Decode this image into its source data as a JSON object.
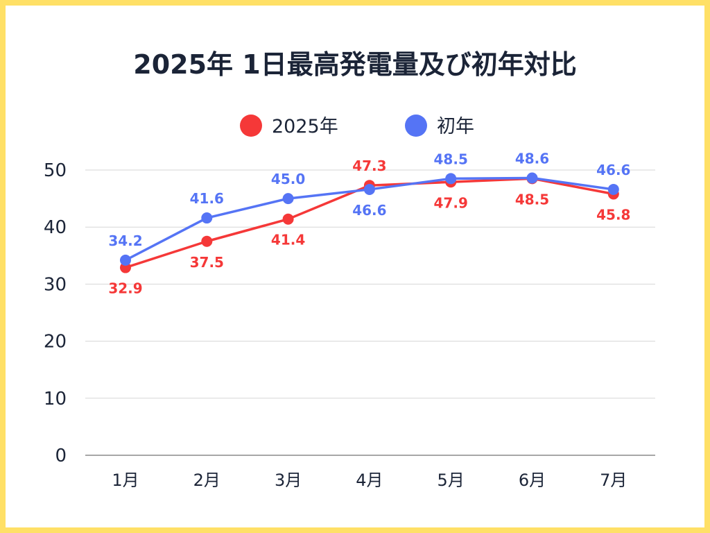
{
  "chart_data": {
    "type": "line",
    "title": "2025年 1日最高発電量及び初年対比",
    "categories": [
      "1月",
      "2月",
      "3月",
      "4月",
      "5月",
      "6月",
      "7月"
    ],
    "series": [
      {
        "name": "2025年",
        "color": "#f53838",
        "values": [
          32.9,
          37.5,
          41.4,
          47.3,
          47.9,
          48.5,
          45.8
        ],
        "label_positions": [
          "below",
          "below",
          "below",
          "above",
          "below",
          "below",
          "below"
        ]
      },
      {
        "name": "初年",
        "color": "#5574f5",
        "values": [
          34.2,
          41.6,
          45.0,
          46.6,
          48.5,
          48.6,
          46.6
        ],
        "label_positions": [
          "above",
          "above",
          "above",
          "below",
          "above",
          "above",
          "above"
        ]
      }
    ],
    "yticks": [
      0,
      10,
      20,
      30,
      40,
      50
    ],
    "ylim": [
      0,
      50
    ],
    "grid": true,
    "legend_position": "top"
  }
}
